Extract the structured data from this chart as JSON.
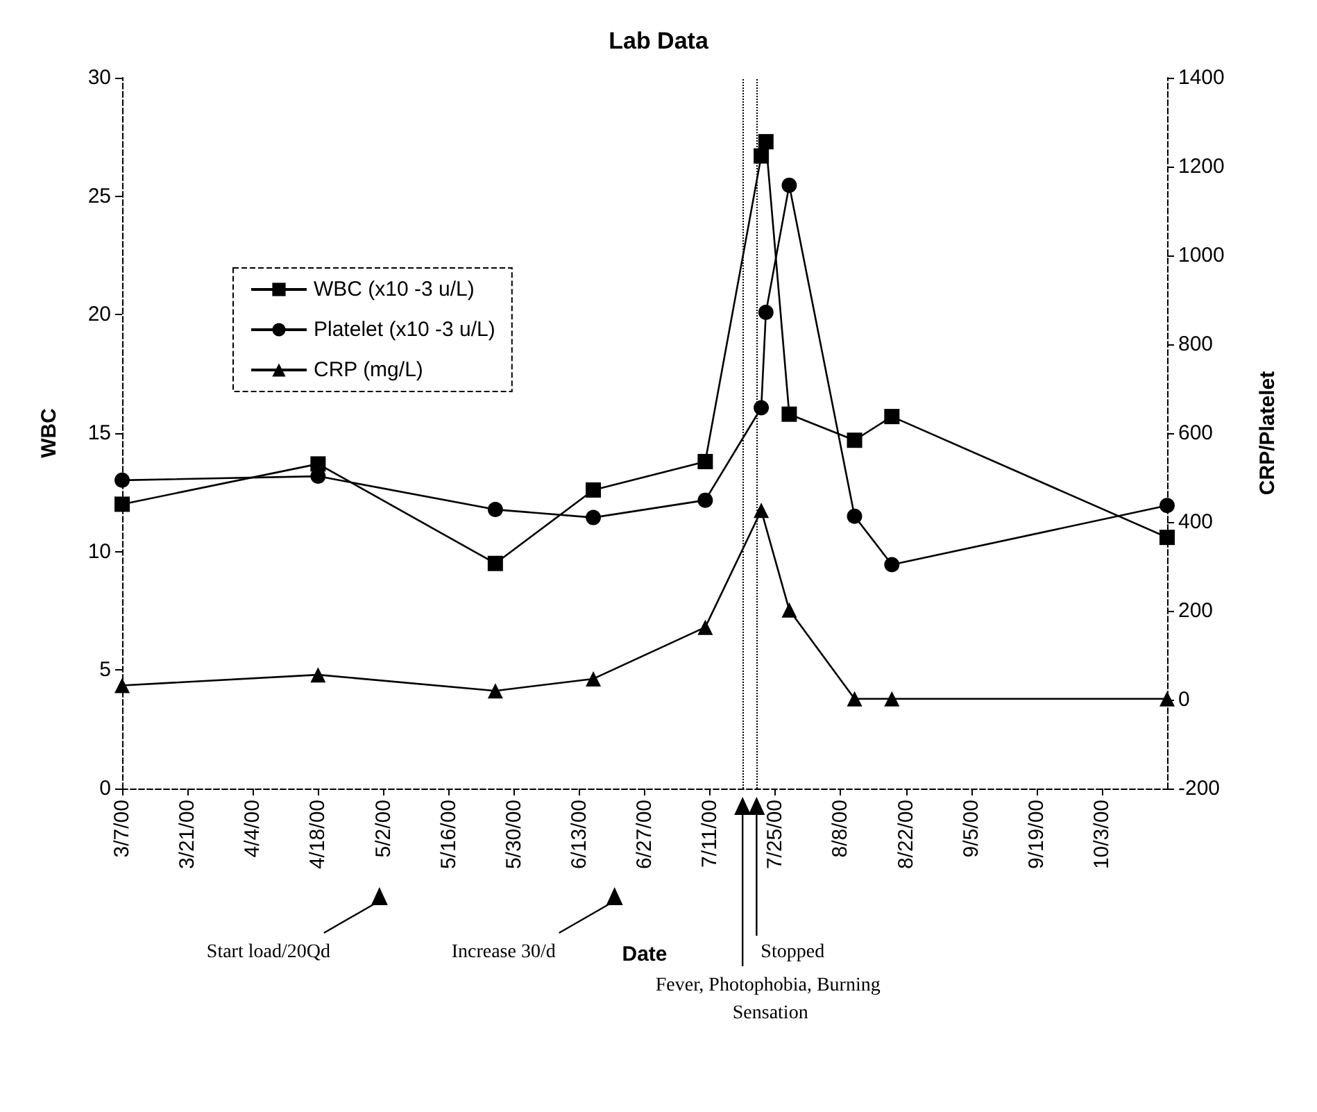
{
  "chart_data": {
    "type": "line",
    "title": "Lab Data",
    "xlabel": "Date",
    "ylabel": "WBC",
    "y2label": "CRP/Platelet",
    "xlim": [
      "2000-03-07",
      "2000-10-17"
    ],
    "xticks": [
      {
        "value": "2000-03-07",
        "label": "3/7/00"
      },
      {
        "value": "2000-03-21",
        "label": "3/21/00"
      },
      {
        "value": "2000-04-04",
        "label": "4/4/00"
      },
      {
        "value": "2000-04-18",
        "label": "4/18/00"
      },
      {
        "value": "2000-05-02",
        "label": "5/2/00"
      },
      {
        "value": "2000-05-16",
        "label": "5/16/00"
      },
      {
        "value": "2000-05-30",
        "label": "5/30/00"
      },
      {
        "value": "2000-06-13",
        "label": "6/13/00"
      },
      {
        "value": "2000-06-27",
        "label": "6/27/00"
      },
      {
        "value": "2000-07-11",
        "label": "7/11/00"
      },
      {
        "value": "2000-07-25",
        "label": "7/25/00"
      },
      {
        "value": "2000-08-08",
        "label": "8/8/00"
      },
      {
        "value": "2000-08-22",
        "label": "8/22/00"
      },
      {
        "value": "2000-09-05",
        "label": "9/5/00"
      },
      {
        "value": "2000-09-19",
        "label": "9/19/00"
      },
      {
        "value": "2000-10-03",
        "label": "10/3/00"
      }
    ],
    "ylim": [
      0,
      30
    ],
    "yticks": [
      0,
      5,
      10,
      15,
      20,
      25,
      30
    ],
    "y2lim": [
      -200,
      1400
    ],
    "y2ticks": [
      -200,
      0,
      200,
      400,
      600,
      800,
      1000,
      1200,
      1400
    ],
    "grid": false,
    "legend": "top left",
    "line_style": "solid",
    "series": [
      {
        "name": "WBC (x10 -3 u/L)",
        "color": "#000000",
        "marker": "square",
        "x": [
          "2000-03-07",
          "2000-04-18",
          "2000-05-26",
          "2000-06-16",
          "2000-07-10",
          "2000-07-22",
          "2000-07-23",
          "2000-07-28",
          "2000-08-11",
          "2000-08-19",
          "2000-10-17"
        ],
        "values": [
          12.0,
          13.7,
          9.5,
          12.6,
          13.8,
          26.7,
          27.3,
          15.8,
          14.7,
          15.7,
          10.6
        ]
      },
      {
        "name": "Platelet (x10 -3 u/L)",
        "color": "#000000",
        "marker": "circle",
        "axis": "y2",
        "x": [
          "2000-03-07",
          "2000-04-18",
          "2000-05-26",
          "2000-06-16",
          "2000-07-10",
          "2000-07-22",
          "2000-07-23",
          "2000-07-28",
          "2000-08-11",
          "2000-08-19",
          "2000-10-17"
        ],
        "values": [
          494,
          503,
          428,
          410,
          449,
          657,
          872,
          1158,
          413,
          304,
          437
        ]
      },
      {
        "name": "CRP (mg/L)",
        "color": "#000000",
        "marker": "triangle",
        "axis": "y2",
        "x": [
          "2000-03-07",
          "2000-04-18",
          "2000-05-26",
          "2000-06-16",
          "2000-07-10",
          "2000-07-22",
          "2000-07-28",
          "2000-08-11",
          "2000-08-19",
          "2000-10-17"
        ],
        "values": [
          32,
          56,
          20,
          47,
          163,
          426,
          202,
          2,
          2,
          2
        ]
      }
    ],
    "ref_lines": [
      {
        "axis": "x",
        "value": "2000-07-18",
        "line_style": "dotted",
        "color": "#000000"
      },
      {
        "axis": "x",
        "value": "2000-07-21",
        "line_style": "dotted",
        "color": "#000000"
      }
    ],
    "annotations": [
      "Start load/20Qd",
      "Increase 30/d",
      "Stopped",
      "Fever, Photophobia, Burning Sensation"
    ]
  }
}
